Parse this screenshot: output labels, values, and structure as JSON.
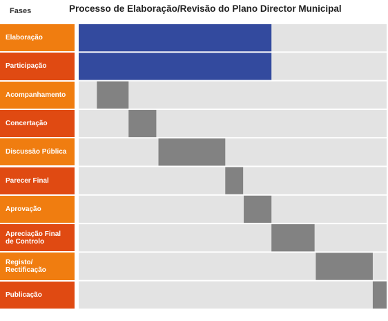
{
  "header": {
    "phases_label": "Fases",
    "title": "Processo de Elaboração/Revisão do Plano Director Municipal"
  },
  "colors": {
    "label_orange": "#F07D10",
    "label_red": "#E04A12",
    "track": "#E3E3E3",
    "bar_blue": "#334A9E",
    "bar_gray": "#828282"
  },
  "chart_data": {
    "type": "gantt",
    "title": "Processo de Elaboração/Revisão do Plano Director Municipal",
    "category_axis_label": "Fases",
    "timeline_range": [
      0,
      100
    ],
    "grid": false,
    "tasks": [
      {
        "label": "Elaboração",
        "start": 0,
        "end": 62.6,
        "color": "#334A9E",
        "label_color": "#F07D10"
      },
      {
        "label": "Participação",
        "start": 0,
        "end": 62.6,
        "color": "#334A9E",
        "label_color": "#E04A12"
      },
      {
        "label": "Acompanhamento",
        "start": 5.9,
        "end": 16.2,
        "color": "#828282",
        "label_color": "#F07D10"
      },
      {
        "label": "Concertação",
        "start": 16.2,
        "end": 25.2,
        "color": "#828282",
        "label_color": "#E04A12"
      },
      {
        "label": "Discussão Pública",
        "start": 25.9,
        "end": 47.6,
        "color": "#828282",
        "label_color": "#F07D10"
      },
      {
        "label": "Parecer Final",
        "start": 47.6,
        "end": 53.4,
        "color": "#828282",
        "label_color": "#E04A12"
      },
      {
        "label": "Aprovação",
        "start": 53.6,
        "end": 62.6,
        "color": "#828282",
        "label_color": "#F07D10"
      },
      {
        "label": "Apreciação Final\nde Controlo",
        "start": 62.6,
        "end": 76.6,
        "color": "#828282",
        "label_color": "#E04A12"
      },
      {
        "label": "Registo/\nRectificação",
        "start": 77.0,
        "end": 95.5,
        "color": "#828282",
        "label_color": "#F07D10"
      },
      {
        "label": "Publicação",
        "start": 95.5,
        "end": 100,
        "color": "#828282",
        "label_color": "#E04A12"
      }
    ]
  }
}
